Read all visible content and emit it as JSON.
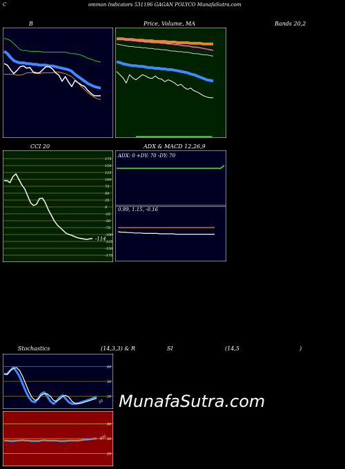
{
  "header": {
    "left": "C",
    "title": "ommon  Indicators 531196  GAGAN  POLYCO MunafaSutra.com"
  },
  "labels": {
    "bollinger_b": "B",
    "price_ma": "Price,  Volume,  MA",
    "bands": "Bands 20,2",
    "cci": "CCI 20",
    "adx_macd": "ADX  & MACD 12,26,9",
    "stoch_1": "Stochastics",
    "stoch_2": "(14,3,3) & R",
    "stoch_3": "SI",
    "stoch_4": "(14,5",
    "stoch_5": ")"
  },
  "watermark": "MunafaSutra.com",
  "colors": {
    "navy": "#000022",
    "green_bg": "#002200",
    "olive_grid": "#8a7a1a",
    "red_bg": "#8b0000",
    "blue": "#3d8bff",
    "orange": "#e58a2b",
    "green_line": "#22cc22",
    "lime": "#55ee22"
  },
  "chart_data": [
    {
      "id": "bollinger",
      "type": "line",
      "title": "B",
      "x": [
        0,
        1,
        2,
        3,
        4,
        5,
        6,
        7,
        8,
        9,
        10,
        11,
        12,
        13,
        14,
        15,
        16,
        17,
        18,
        19,
        20,
        21,
        22,
        23,
        24,
        25,
        26,
        27,
        28,
        29,
        30
      ],
      "series": [
        {
          "values": [
            58,
            55,
            50,
            46,
            44,
            43,
            43,
            42,
            42,
            41,
            41,
            40,
            40,
            40,
            39,
            39,
            38,
            37,
            36,
            35,
            34,
            32,
            28,
            25,
            22,
            19,
            16,
            14,
            12,
            11,
            10
          ]
        },
        {
          "values": [
            75,
            74,
            72,
            68,
            64,
            60,
            59,
            59,
            58,
            58,
            58,
            58,
            57,
            57,
            57,
            57,
            57,
            57,
            57,
            57,
            56,
            55,
            55,
            54,
            53,
            51,
            49,
            48,
            46,
            45,
            44
          ]
        },
        {
          "values": [
            28,
            28,
            28,
            28,
            27,
            27,
            28,
            30,
            30,
            30,
            29,
            29,
            30,
            30,
            30,
            30,
            31,
            31,
            30,
            29,
            27,
            25,
            21,
            17,
            12,
            8,
            4,
            1,
            -2,
            -4,
            -5
          ]
        },
        {
          "values": [
            42,
            40,
            34,
            29,
            33,
            38,
            39,
            36,
            37,
            31,
            30,
            30,
            34,
            38,
            38,
            35,
            30,
            27,
            19,
            25,
            18,
            12,
            20,
            17,
            14,
            12,
            7,
            3,
            0,
            0,
            0
          ]
        }
      ]
    },
    {
      "id": "price_ma",
      "type": "line",
      "title": "Price,  Volume,  MA",
      "x": [
        0,
        1,
        2,
        3,
        4,
        5,
        6,
        7,
        8,
        9,
        10,
        11,
        12,
        13,
        14,
        15,
        16,
        17,
        18,
        19,
        20,
        21,
        22,
        23,
        24,
        25,
        26,
        27,
        28,
        29,
        30
      ],
      "series": [
        {
          "values": [
            91,
            91,
            91,
            90,
            90,
            90,
            89,
            89,
            89,
            88,
            88,
            88,
            87,
            87,
            87,
            87,
            86,
            86,
            86,
            85,
            85,
            85,
            85,
            84,
            84,
            84,
            84,
            83,
            83,
            83,
            83
          ]
        },
        {
          "values": [
            92,
            91,
            90,
            89,
            89,
            88,
            88,
            87,
            87,
            86,
            86,
            85,
            85,
            85,
            84,
            84,
            83,
            83,
            82,
            82,
            81,
            80,
            80,
            79,
            78,
            78,
            77,
            76,
            75,
            74,
            73
          ]
        },
        {
          "values": [
            83,
            82,
            81,
            80,
            79,
            79,
            78,
            78,
            77,
            77,
            76,
            76,
            75,
            75,
            74,
            74,
            73,
            72,
            72,
            71,
            71,
            70,
            70,
            69,
            68,
            68,
            67,
            66,
            66,
            65,
            64
          ]
        },
        {
          "values": [
            55,
            54,
            52,
            51,
            50,
            49,
            49,
            48,
            48,
            47,
            46,
            46,
            45,
            45,
            44,
            44,
            43,
            43,
            42,
            41,
            40,
            39,
            38,
            36,
            35,
            33,
            31,
            29,
            27,
            26,
            25
          ]
        },
        {
          "values": [
            40,
            35,
            30,
            22,
            35,
            30,
            27,
            31,
            35,
            33,
            30,
            29,
            33,
            29,
            28,
            24,
            27,
            25,
            22,
            18,
            20,
            15,
            12,
            14,
            10,
            8,
            5,
            2,
            0,
            -1,
            -1
          ]
        }
      ]
    },
    {
      "id": "cci",
      "type": "line",
      "title": "CCI 20",
      "ylim": [
        -175,
        175
      ],
      "ticks": [
        "175",
        "150",
        "125",
        "100",
        "75",
        "50",
        "25",
        "0",
        "-25",
        "-50",
        "-75",
        "-100",
        "-125",
        "-150",
        "-175"
      ],
      "last_label": "-114",
      "x": [
        0,
        1,
        2,
        3,
        4,
        5,
        6,
        7,
        8,
        9,
        10,
        11,
        12,
        13,
        14,
        15,
        16,
        17,
        18,
        19,
        20,
        21,
        22,
        23,
        24,
        25,
        26,
        27,
        28,
        29,
        30
      ],
      "values": [
        95,
        95,
        88,
        110,
        120,
        100,
        80,
        65,
        40,
        15,
        5,
        10,
        30,
        32,
        15,
        -10,
        -30,
        -50,
        -65,
        -75,
        -85,
        -95,
        -100,
        -103,
        -108,
        -112,
        -114,
        -116,
        -118,
        -116,
        -114
      ]
    },
    {
      "id": "adx",
      "type": "line",
      "title": "ADX  & MACD 12,26,9",
      "legend": "ADX: 0   +DY: 70   -DY: 70",
      "x": [
        0,
        1,
        2,
        3,
        4,
        5,
        6,
        7,
        8,
        9,
        10,
        11,
        12,
        13,
        14,
        15,
        16,
        17,
        18,
        19,
        20,
        21,
        22,
        23,
        24,
        25,
        26,
        27,
        28,
        29,
        30
      ],
      "values": [
        70,
        70,
        70,
        70,
        70,
        70,
        70,
        70,
        70,
        70,
        70,
        70,
        70,
        70,
        70,
        70,
        70,
        70,
        70,
        70,
        70,
        70,
        70,
        70,
        70,
        70,
        70,
        70,
        70,
        70,
        76
      ]
    },
    {
      "id": "macd",
      "type": "line",
      "legend": "0.99,  1.15,  -0.16",
      "x": [
        0,
        1,
        2,
        3,
        4,
        5,
        6,
        7,
        8,
        9,
        10,
        11,
        12,
        13,
        14,
        15,
        16,
        17,
        18,
        19,
        20,
        21,
        22,
        23,
        24,
        25,
        26,
        27,
        28,
        29,
        30
      ],
      "series": [
        {
          "values": [
            1.05,
            1.04,
            1.04,
            1.03,
            1.03,
            1.02,
            1.02,
            1.02,
            1.01,
            1.01,
            1.01,
            1.01,
            1.01,
            1.0,
            1.0,
            1.0,
            1.0,
            1.0,
            0.99,
            0.99,
            0.99,
            0.99,
            0.99,
            0.99,
            0.99,
            0.99,
            0.99,
            0.99,
            0.99,
            0.99,
            0.99
          ]
        },
        {
          "values": [
            1.15,
            1.15,
            1.15,
            1.15,
            1.15,
            1.15,
            1.15,
            1.15,
            1.15,
            1.15,
            1.15,
            1.15,
            1.15,
            1.15,
            1.15,
            1.15,
            1.15,
            1.15,
            1.15,
            1.15,
            1.15,
            1.15,
            1.15,
            1.15,
            1.15,
            1.15,
            1.15,
            1.15,
            1.15,
            1.15,
            1.15
          ]
        }
      ]
    },
    {
      "id": "stochastics",
      "type": "line",
      "ylim": [
        0,
        100
      ],
      "ticks": [
        "80",
        "50",
        "20"
      ],
      "last_label": "20",
      "x": [
        0,
        1,
        2,
        3,
        4,
        5,
        6,
        7,
        8,
        9,
        10,
        11,
        12,
        13,
        14,
        15,
        16,
        17,
        18,
        19,
        20,
        21,
        22,
        23,
        24,
        25,
        26,
        27,
        28,
        29,
        30
      ],
      "series": [
        {
          "values": [
            65,
            65,
            72,
            78,
            70,
            60,
            45,
            30,
            18,
            10,
            8,
            15,
            25,
            28,
            20,
            10,
            5,
            10,
            18,
            22,
            15,
            8,
            5,
            5,
            6,
            8,
            10,
            12,
            14,
            17,
            19
          ]
        },
        {
          "values": [
            65,
            64,
            72,
            76,
            78,
            72,
            60,
            45,
            30,
            18,
            12,
            14,
            22,
            25,
            25,
            20,
            12,
            10,
            14,
            20,
            22,
            18,
            10,
            6,
            5,
            6,
            8,
            10,
            12,
            14,
            16
          ]
        }
      ]
    },
    {
      "id": "rsi",
      "type": "line",
      "ylim": [
        0,
        100
      ],
      "ticks": [
        "80",
        "50",
        "20"
      ],
      "last_label": "RSI",
      "x": [
        0,
        1,
        2,
        3,
        4,
        5,
        6,
        7,
        8,
        9,
        10,
        11,
        12,
        13,
        14,
        15,
        16,
        17,
        18,
        19,
        20,
        21,
        22,
        23,
        24,
        25,
        26,
        27,
        28,
        29,
        30
      ],
      "series": [
        {
          "values": [
            46,
            46,
            45,
            45,
            46,
            46,
            47,
            46,
            46,
            45,
            45,
            45,
            46,
            47,
            46,
            46,
            46,
            46,
            45,
            45,
            45,
            46,
            46,
            46,
            46,
            47,
            48,
            48,
            49,
            50,
            51
          ]
        },
        {
          "values": [
            46,
            46,
            46,
            46,
            46,
            46,
            46,
            46,
            46,
            46,
            46,
            46,
            46,
            46,
            46,
            46,
            46,
            46,
            46,
            46,
            46,
            46,
            46,
            46,
            46,
            47,
            47,
            48,
            48,
            49,
            49
          ]
        }
      ]
    }
  ]
}
